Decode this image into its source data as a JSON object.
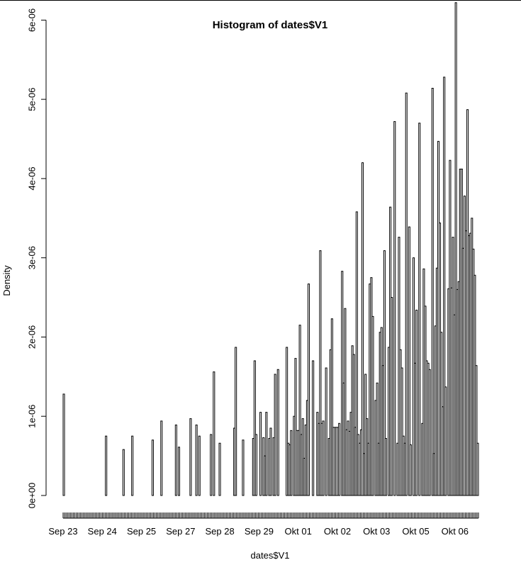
{
  "chart_data": {
    "type": "bar",
    "title": "Histogram of dates$V1",
    "xlabel": "dates$V1",
    "ylabel": "Density",
    "ylim": [
      0,
      6.2e-06
    ],
    "yticks": [
      "0e+00",
      "1e-06",
      "2e-06",
      "3e-06",
      "4e-06",
      "5e-06",
      "6e-06"
    ],
    "ytick_values": [
      0,
      1e-06,
      2e-06,
      3e-06,
      4e-06,
      5e-06,
      6e-06
    ],
    "xticks": [
      "Sep 23",
      "Sep 24",
      "Sep 25",
      "Sep 27",
      "Sep 28",
      "Sep 29",
      "Okt 01",
      "Okt 02",
      "Okt 03",
      "Okt 05",
      "Okt 06"
    ],
    "xtick_days": [
      0,
      1,
      2,
      3,
      4,
      5,
      6,
      7,
      8,
      9,
      10
    ],
    "xlim_days": [
      0,
      10.6
    ],
    "bin_width_days": 0.0833,
    "values": [
      1.28e-06,
      0,
      0,
      0,
      0,
      0,
      0,
      0,
      0,
      0,
      0,
      0,
      0,
      0,
      0,
      0,
      0,
      0,
      0,
      0,
      0,
      0,
      0,
      0,
      0,
      0,
      0,
      0,
      0,
      7.5e-07,
      0,
      0,
      0,
      0,
      0,
      0,
      0,
      0,
      0,
      0,
      0,
      5.8e-07,
      0,
      0,
      0,
      0,
      0,
      7.5e-07,
      0,
      0,
      0,
      0,
      0,
      0,
      0,
      0,
      0,
      0,
      0,
      0,
      0,
      7e-07,
      0,
      0,
      0,
      0,
      0,
      9.4e-07,
      0,
      0,
      0,
      0,
      0,
      0,
      0,
      0,
      0,
      8.9e-07,
      0,
      6.1e-07,
      0,
      0,
      0,
      0,
      0,
      0,
      0,
      9.7e-07,
      0,
      0,
      0,
      8.9e-07,
      0,
      7.5e-07,
      0,
      0,
      0,
      0,
      0,
      0,
      0,
      7.7e-07,
      0,
      1.56e-06,
      0,
      0,
      0,
      6.6e-07,
      0,
      0,
      0,
      0,
      0,
      0,
      0,
      0,
      0,
      8.5e-07,
      1.87e-06,
      0,
      0,
      0,
      0,
      7e-07,
      0,
      0,
      0,
      0,
      0,
      0,
      7.2e-07,
      1.7e-06,
      7.7e-07,
      0,
      0,
      1.05e-06,
      0,
      7.3e-07,
      5e-07,
      1.05e-06,
      0,
      7.2e-07,
      8.5e-07,
      0,
      7.3e-07,
      1.53e-06,
      0,
      1.59e-06,
      0,
      0,
      0,
      0,
      0,
      1.87e-06,
      6.6e-07,
      6.4e-07,
      8.2e-07,
      0,
      1e-06,
      1.73e-06,
      8.2e-07,
      8.2e-07,
      2.15e-06,
      7.7e-07,
      9.7e-07,
      4.7e-07,
      8.9e-07,
      1.2e-06,
      2.67e-06,
      0,
      0,
      1.7e-06,
      0,
      0,
      1.05e-06,
      9.1e-07,
      3.09e-06,
      9.1e-07,
      9.4e-07,
      0,
      1.61e-06,
      0,
      7.2e-07,
      1.84e-06,
      2.23e-06,
      8.6e-07,
      8.6e-07,
      8.6e-07,
      8.6e-07,
      9.1e-07,
      0,
      2.83e-06,
      1.42e-06,
      2.36e-06,
      8.3e-07,
      9.4e-07,
      8.1e-07,
      1.05e-06,
      1.89e-06,
      1.78e-06,
      8.6e-07,
      3.58e-06,
      7.7e-07,
      6.6e-07,
      8.3e-07,
      4.2e-06,
      5.3e-07,
      1.53e-06,
      9.7e-07,
      6.6e-07,
      2.67e-06,
      2.75e-06,
      2.26e-06,
      0,
      1.2e-06,
      1.42e-06,
      6.6e-07,
      2.06e-06,
      2.12e-06,
      1.64e-06,
      3.09e-06,
      7.2e-07,
      0,
      1.87e-06,
      3.64e-06,
      2.5e-06,
      0,
      4.72e-06,
      0,
      6.6e-07,
      3.26e-06,
      1.84e-06,
      1.61e-06,
      7.5e-07,
      6.6e-07,
      5.08e-06,
      0,
      3.39e-06,
      6.4e-07,
      0,
      3e-06,
      1.67e-06,
      2.34e-06,
      0,
      4.7e-06,
      0,
      9.1e-07,
      2.86e-06,
      2.39e-06,
      1.7e-06,
      1.67e-06,
      1.59e-06,
      0,
      5.14e-06,
      5.3e-07,
      2.14e-06,
      2.87e-06,
      4.47e-06,
      3.44e-06,
      2.06e-06,
      1.12e-06,
      5.28e-06,
      1.37e-06,
      0,
      2.61e-06,
      4.23e-06,
      2.62e-06,
      3.26e-06,
      2.28e-06,
      6.22e-06,
      2.6e-06,
      2.7e-06,
      4.12e-06,
      4.12e-06,
      3.12e-06,
      3.78e-06,
      3.34e-06,
      4.87e-06,
      3.28e-06,
      3.31e-06,
      3.5e-06,
      3.11e-06,
      2.78e-06,
      1.64e-06,
      6.6e-07
    ],
    "grid": false,
    "legend": "none",
    "colors": {
      "bar_fill": "#ffffff",
      "bar_stroke": "#000000",
      "axis": "#000000",
      "background": "#ffffff"
    }
  }
}
